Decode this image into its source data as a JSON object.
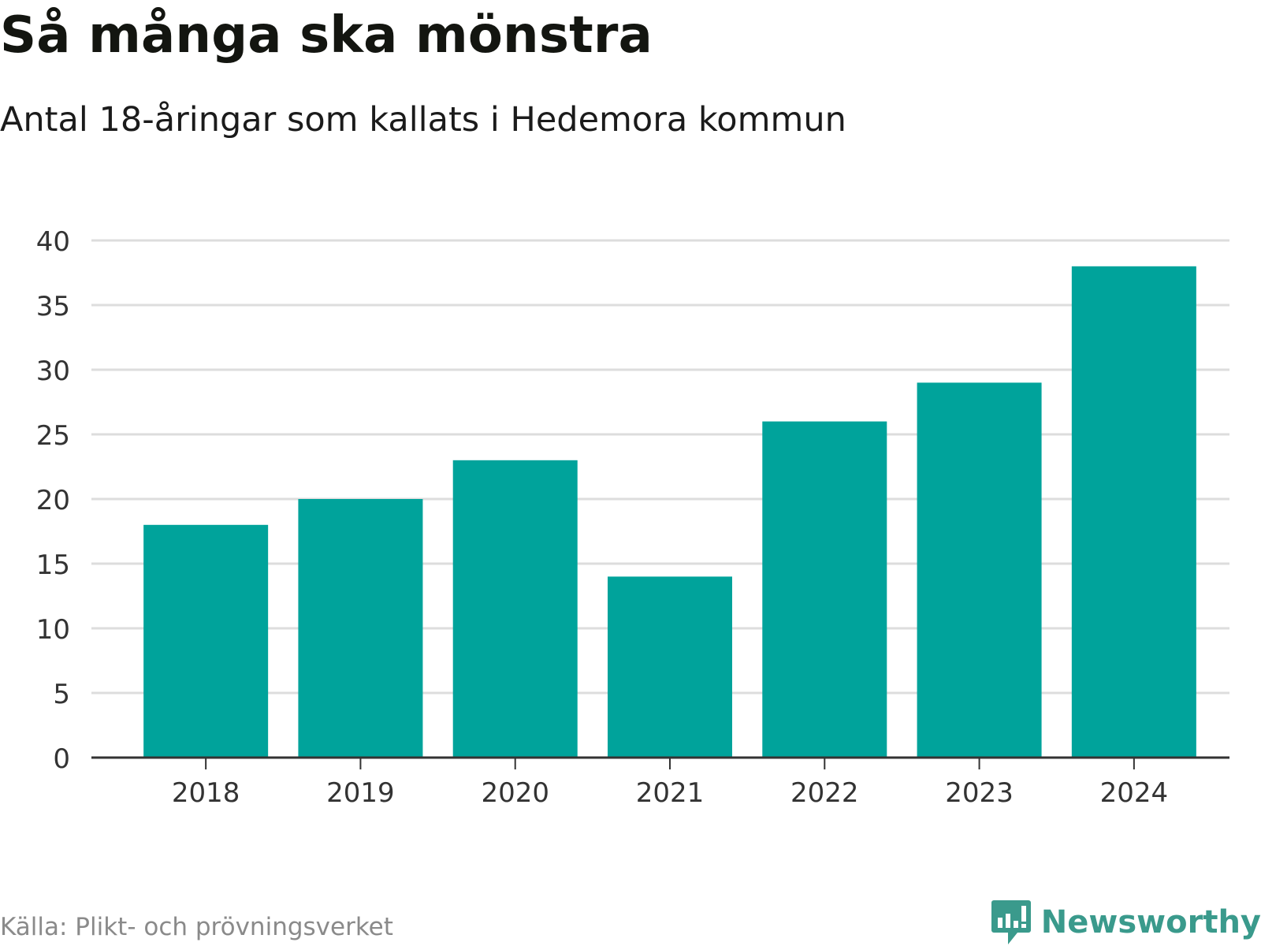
{
  "header": {
    "title": "Så många ska mönstra",
    "subtitle": "Antal 18-åringar som kallats i Hedemora kommun"
  },
  "footer": {
    "source": "Källa: Plikt- och prövningsverket",
    "brand": "Newsworthy"
  },
  "colors": {
    "bar": "#00A39B",
    "grid": "#DDDDDD",
    "axis": "#333333",
    "brand": "#3A9A8C"
  },
  "chart_data": {
    "type": "bar",
    "title": "Så många ska mönstra",
    "subtitle": "Antal 18-åringar som kallats i Hedemora kommun",
    "categories": [
      "2018",
      "2019",
      "2020",
      "2021",
      "2022",
      "2023",
      "2024"
    ],
    "values": [
      18,
      20,
      23,
      14,
      26,
      29,
      38
    ],
    "xlabel": "",
    "ylabel": "",
    "ylim": [
      0,
      40
    ],
    "yticks": [
      0,
      5,
      10,
      15,
      20,
      25,
      30,
      35,
      40
    ],
    "grid": true,
    "legend": "none"
  }
}
